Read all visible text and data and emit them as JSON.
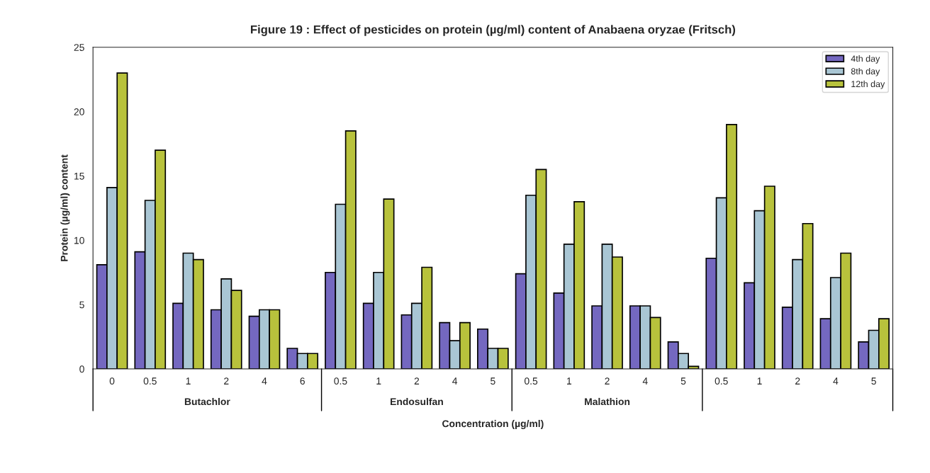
{
  "chart_data": {
    "type": "bar",
    "title": "Figure 19 : Effect of pesticides on protein (µg/ml) content of Anabaena oryzae (Fritsch)",
    "xlabel": "Concentration (µg/ml)",
    "ylabel": "Protein (µg/ml) content",
    "categories": [
      "0",
      "0.5",
      "1",
      "2",
      "4",
      "6",
      "0.5",
      "1",
      "2",
      "4",
      "5",
      "0.5",
      "1",
      "2",
      "4",
      "5",
      "0.5",
      "1",
      "2",
      "4",
      "5"
    ],
    "series": [
      {
        "name": "4th day",
        "color": "#7468c0",
        "values": [
          8.1,
          9.1,
          5.1,
          4.6,
          4.1,
          1.6,
          7.5,
          5.1,
          4.2,
          3.6,
          3.1,
          7.4,
          5.9,
          4.9,
          4.9,
          2.1,
          8.6,
          6.7,
          4.8,
          3.9,
          2.1
        ]
      },
      {
        "name": "8th day",
        "color": "#a9c6d4",
        "values": [
          14.1,
          13.1,
          9.0,
          7.0,
          4.6,
          1.2,
          12.8,
          7.5,
          5.1,
          2.2,
          1.6,
          13.5,
          9.7,
          9.7,
          4.9,
          1.2,
          13.3,
          12.3,
          8.5,
          7.1,
          3.0
        ]
      },
      {
        "name": "12th day",
        "color": "#b8c23c",
        "values": [
          23.0,
          17.0,
          8.5,
          6.1,
          4.6,
          1.2,
          18.5,
          13.2,
          7.9,
          3.6,
          1.6,
          15.5,
          13.0,
          8.7,
          4.0,
          0.2,
          19.0,
          14.2,
          11.3,
          9.0,
          3.9
        ]
      }
    ],
    "annotations": [
      "Butachlor",
      "Endosulfan",
      "Malathion"
    ],
    "ylim": [
      0,
      25
    ],
    "yticks": [
      0,
      5,
      10,
      15,
      20,
      25
    ],
    "legend": "top right",
    "grid": false
  }
}
